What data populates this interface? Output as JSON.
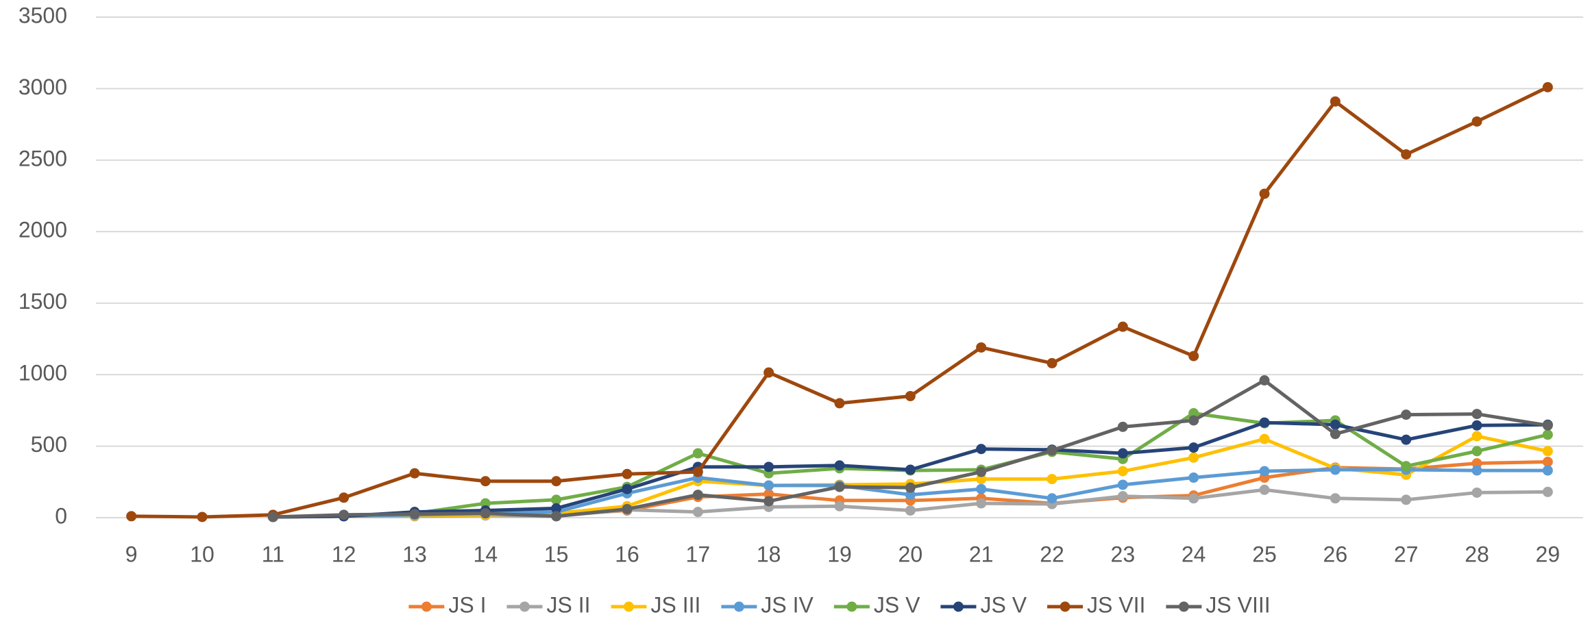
{
  "chart_data": {
    "type": "line",
    "categories": [
      9,
      10,
      11,
      12,
      13,
      14,
      15,
      16,
      17,
      18,
      19,
      20,
      21,
      22,
      23,
      24,
      25,
      26,
      27,
      28,
      29
    ],
    "ylim": [
      0,
      3500
    ],
    "yticks": [
      0,
      500,
      1000,
      1500,
      2000,
      2500,
      3000,
      3500
    ],
    "grid": true,
    "legend": "bottom",
    "series": [
      {
        "name": "JS I",
        "color": "#ed7d31",
        "values": [
          null,
          null,
          5,
          10,
          15,
          20,
          20,
          50,
          145,
          165,
          120,
          120,
          135,
          100,
          140,
          155,
          280,
          350,
          340,
          380,
          390
        ]
      },
      {
        "name": "JS II",
        "color": "#a5a5a5",
        "values": [
          null,
          null,
          5,
          10,
          10,
          15,
          10,
          55,
          40,
          75,
          80,
          50,
          100,
          95,
          150,
          135,
          195,
          135,
          125,
          175,
          180
        ]
      },
      {
        "name": "JS III",
        "color": "#ffc000",
        "values": [
          null,
          null,
          5,
          10,
          15,
          20,
          30,
          80,
          255,
          225,
          230,
          235,
          270,
          270,
          325,
          420,
          550,
          345,
          300,
          570,
          465
        ]
      },
      {
        "name": "JS IV",
        "color": "#5b9bd5",
        "values": [
          null,
          null,
          5,
          10,
          20,
          30,
          40,
          170,
          280,
          225,
          225,
          160,
          200,
          135,
          230,
          280,
          325,
          335,
          335,
          330,
          330
        ]
      },
      {
        "name": "JS V",
        "color": "#70ad47",
        "values": [
          null,
          null,
          5,
          15,
          30,
          100,
          125,
          215,
          450,
          310,
          345,
          330,
          335,
          460,
          410,
          730,
          660,
          680,
          360,
          465,
          580
        ]
      },
      {
        "name": "JS V",
        "color": "#264478",
        "values": [
          null,
          null,
          5,
          10,
          40,
          50,
          65,
          200,
          355,
          355,
          365,
          335,
          480,
          475,
          450,
          490,
          665,
          650,
          545,
          645,
          650
        ]
      },
      {
        "name": "JS VII",
        "color": "#9e480e",
        "values": [
          10,
          5,
          20,
          140,
          310,
          255,
          255,
          305,
          320,
          1015,
          800,
          850,
          1190,
          1080,
          1335,
          1130,
          2265,
          2910,
          2540,
          2770,
          3010
        ]
      },
      {
        "name": "JS VIII",
        "color": "#636363",
        "values": [
          null,
          null,
          5,
          20,
          25,
          30,
          10,
          60,
          160,
          115,
          215,
          210,
          320,
          470,
          635,
          680,
          960,
          585,
          720,
          725,
          645
        ]
      }
    ]
  }
}
